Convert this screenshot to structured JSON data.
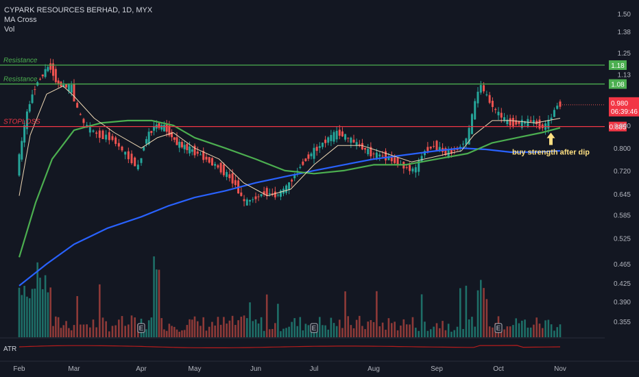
{
  "header": {
    "symbol_line": "CYPARK RESOURCES BERHAD, 1D, MYX",
    "indicator_1": "MA Cross",
    "indicator_2": "Vol"
  },
  "atr_label": "ATR",
  "colors": {
    "background": "#131722",
    "up": "#26a69a",
    "down": "#ef5350",
    "ma_fast": "#f0d9b5",
    "ma_mid": "#4caf50",
    "ma_slow": "#2962ff",
    "resistance": "#4caf50",
    "stoploss": "#f23645",
    "atr": "#b71c1c",
    "annotation": "#ffe082"
  },
  "chart_data": {
    "type": "candlestick",
    "title": "CYPARK RESOURCES BERHAD, 1D, MYX",
    "y_scale": "log",
    "ylim": [
      0.33,
      1.55
    ],
    "y_ticks": [
      "1.50",
      "1.38",
      "1.25",
      "1.13",
      "1.00",
      "0.890",
      "0.800",
      "0.720",
      "0.645",
      "0.585",
      "0.525",
      "0.465",
      "0.425",
      "0.390",
      "0.355"
    ],
    "months": [
      "Feb",
      "Mar",
      "Apr",
      "May",
      "Jun",
      "Jul",
      "Aug",
      "Sep",
      "Oct",
      "Nov"
    ],
    "price_path": [
      {
        "m": 0.0,
        "p": 0.72
      },
      {
        "m": 0.08,
        "p": 0.8
      },
      {
        "m": 0.15,
        "p": 0.9
      },
      {
        "m": 0.25,
        "p": 1.0
      },
      {
        "m": 0.35,
        "p": 1.08
      },
      {
        "m": 0.5,
        "p": 1.14
      },
      {
        "m": 0.6,
        "p": 1.18
      },
      {
        "m": 0.75,
        "p": 1.08
      },
      {
        "m": 1.0,
        "p": 1.06
      },
      {
        "m": 1.1,
        "p": 0.95
      },
      {
        "m": 1.2,
        "p": 0.89
      },
      {
        "m": 1.4,
        "p": 0.85
      },
      {
        "m": 1.6,
        "p": 0.84
      },
      {
        "m": 1.8,
        "p": 0.78
      },
      {
        "m": 2.0,
        "p": 0.73
      },
      {
        "m": 2.1,
        "p": 0.82
      },
      {
        "m": 2.3,
        "p": 0.89
      },
      {
        "m": 2.5,
        "p": 0.88
      },
      {
        "m": 2.7,
        "p": 0.82
      },
      {
        "m": 2.9,
        "p": 0.8
      },
      {
        "m": 3.1,
        "p": 0.78
      },
      {
        "m": 3.3,
        "p": 0.75
      },
      {
        "m": 3.5,
        "p": 0.72
      },
      {
        "m": 3.7,
        "p": 0.68
      },
      {
        "m": 3.85,
        "p": 0.62
      },
      {
        "m": 4.0,
        "p": 0.63
      },
      {
        "m": 4.2,
        "p": 0.65
      },
      {
        "m": 4.4,
        "p": 0.64
      },
      {
        "m": 4.6,
        "p": 0.67
      },
      {
        "m": 4.75,
        "p": 0.72
      },
      {
        "m": 4.9,
        "p": 0.76
      },
      {
        "m": 5.1,
        "p": 0.8
      },
      {
        "m": 5.3,
        "p": 0.84
      },
      {
        "m": 5.45,
        "p": 0.86
      },
      {
        "m": 5.6,
        "p": 0.84
      },
      {
        "m": 5.8,
        "p": 0.81
      },
      {
        "m": 6.0,
        "p": 0.78
      },
      {
        "m": 6.2,
        "p": 0.77
      },
      {
        "m": 6.4,
        "p": 0.75
      },
      {
        "m": 6.55,
        "p": 0.73
      },
      {
        "m": 6.7,
        "p": 0.72
      },
      {
        "m": 6.85,
        "p": 0.79
      },
      {
        "m": 7.0,
        "p": 0.81
      },
      {
        "m": 7.2,
        "p": 0.78
      },
      {
        "m": 7.4,
        "p": 0.8
      },
      {
        "m": 7.55,
        "p": 0.84
      },
      {
        "m": 7.65,
        "p": 0.97
      },
      {
        "m": 7.75,
        "p": 1.08
      },
      {
        "m": 7.85,
        "p": 1.02
      },
      {
        "m": 8.0,
        "p": 0.95
      },
      {
        "m": 8.2,
        "p": 0.9
      },
      {
        "m": 8.4,
        "p": 0.9
      },
      {
        "m": 8.6,
        "p": 0.91
      },
      {
        "m": 8.75,
        "p": 0.88
      },
      {
        "m": 8.85,
        "p": 0.9
      },
      {
        "m": 9.0,
        "p": 0.98
      }
    ],
    "ma_fast": [
      {
        "m": 0.0,
        "p": 0.64
      },
      {
        "m": 0.2,
        "p": 0.85
      },
      {
        "m": 0.5,
        "p": 1.03
      },
      {
        "m": 0.8,
        "p": 1.07
      },
      {
        "m": 1.0,
        "p": 1.02
      },
      {
        "m": 1.3,
        "p": 0.92
      },
      {
        "m": 1.6,
        "p": 0.86
      },
      {
        "m": 2.0,
        "p": 0.8
      },
      {
        "m": 2.3,
        "p": 0.84
      },
      {
        "m": 2.6,
        "p": 0.86
      },
      {
        "m": 3.0,
        "p": 0.8
      },
      {
        "m": 3.4,
        "p": 0.76
      },
      {
        "m": 3.8,
        "p": 0.68
      },
      {
        "m": 4.2,
        "p": 0.64
      },
      {
        "m": 4.6,
        "p": 0.66
      },
      {
        "m": 5.0,
        "p": 0.74
      },
      {
        "m": 5.4,
        "p": 0.81
      },
      {
        "m": 5.8,
        "p": 0.81
      },
      {
        "m": 6.2,
        "p": 0.78
      },
      {
        "m": 6.6,
        "p": 0.75
      },
      {
        "m": 7.0,
        "p": 0.77
      },
      {
        "m": 7.4,
        "p": 0.79
      },
      {
        "m": 7.6,
        "p": 0.85
      },
      {
        "m": 7.9,
        "p": 0.91
      },
      {
        "m": 8.2,
        "p": 0.91
      },
      {
        "m": 8.6,
        "p": 0.9
      },
      {
        "m": 9.0,
        "p": 0.92
      }
    ],
    "ma_mid": [
      {
        "m": 0.0,
        "p": 0.48
      },
      {
        "m": 0.3,
        "p": 0.62
      },
      {
        "m": 0.6,
        "p": 0.76
      },
      {
        "m": 1.0,
        "p": 0.87
      },
      {
        "m": 1.4,
        "p": 0.9
      },
      {
        "m": 1.8,
        "p": 0.91
      },
      {
        "m": 2.2,
        "p": 0.91
      },
      {
        "m": 2.6,
        "p": 0.89
      },
      {
        "m": 3.0,
        "p": 0.84
      },
      {
        "m": 3.5,
        "p": 0.8
      },
      {
        "m": 4.0,
        "p": 0.76
      },
      {
        "m": 4.5,
        "p": 0.72
      },
      {
        "m": 5.0,
        "p": 0.71
      },
      {
        "m": 5.5,
        "p": 0.72
      },
      {
        "m": 6.0,
        "p": 0.74
      },
      {
        "m": 6.5,
        "p": 0.74
      },
      {
        "m": 7.0,
        "p": 0.76
      },
      {
        "m": 7.5,
        "p": 0.78
      },
      {
        "m": 7.9,
        "p": 0.82
      },
      {
        "m": 8.3,
        "p": 0.84
      },
      {
        "m": 8.7,
        "p": 0.86
      },
      {
        "m": 9.0,
        "p": 0.88
      }
    ],
    "ma_slow": [
      {
        "m": 0.0,
        "p": 0.42
      },
      {
        "m": 0.5,
        "p": 0.465
      },
      {
        "m": 1.0,
        "p": 0.51
      },
      {
        "m": 1.5,
        "p": 0.55
      },
      {
        "m": 2.0,
        "p": 0.58
      },
      {
        "m": 2.5,
        "p": 0.61
      },
      {
        "m": 3.0,
        "p": 0.635
      },
      {
        "m": 3.5,
        "p": 0.655
      },
      {
        "m": 4.0,
        "p": 0.68
      },
      {
        "m": 4.5,
        "p": 0.7
      },
      {
        "m": 5.0,
        "p": 0.72
      },
      {
        "m": 5.5,
        "p": 0.74
      },
      {
        "m": 6.0,
        "p": 0.76
      },
      {
        "m": 6.5,
        "p": 0.775
      },
      {
        "m": 7.0,
        "p": 0.79
      },
      {
        "m": 7.4,
        "p": 0.8
      },
      {
        "m": 7.8,
        "p": 0.795
      },
      {
        "m": 8.2,
        "p": 0.785
      },
      {
        "m": 8.6,
        "p": 0.785
      },
      {
        "m": 9.0,
        "p": 0.79
      }
    ],
    "levels": [
      {
        "label": "Resistance",
        "value": 1.18,
        "tag": "1.18",
        "color": "#4caf50"
      },
      {
        "label": "Resistance",
        "value": 1.08,
        "tag": "1.08",
        "color": "#4caf50"
      },
      {
        "label": "STOPLOSS",
        "value": 0.885,
        "tag": "0.885",
        "color": "#f23645"
      }
    ],
    "last_price": {
      "value": 0.98,
      "price_text": "0.980",
      "countdown": "06:39:46"
    },
    "annotation": {
      "text": "buy strength after dip",
      "at_month": 8.85,
      "at_price": 0.86
    },
    "earnings_markers": {
      "months": [
        2.0,
        5.0,
        8.0
      ],
      "label": "E"
    },
    "volume_profile": "volume bars at the bottom of the pane, peaks near Feb, early Apr and late Sep"
  }
}
